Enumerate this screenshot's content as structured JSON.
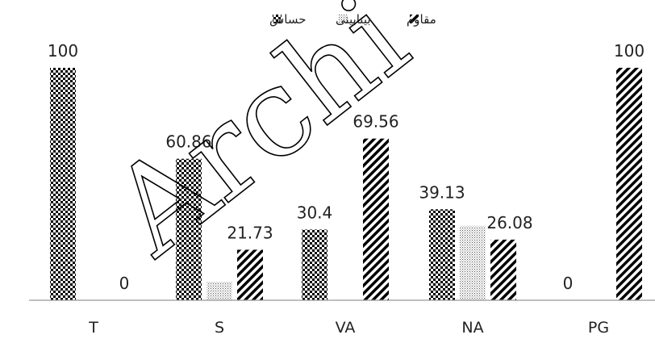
{
  "chart_data": {
    "type": "bar",
    "categories": [
      "T",
      "S",
      "VA",
      "NA",
      "PG"
    ],
    "series": [
      {
        "name": "حساس",
        "pattern": "checker",
        "values": [
          100,
          60.86,
          30.4,
          39.13,
          0
        ]
      },
      {
        "name": "بینابینی",
        "pattern": "dots",
        "values": [
          null,
          8.0,
          null,
          32.0,
          null
        ]
      },
      {
        "name": "مقاوم",
        "pattern": "diagonal",
        "values": [
          0,
          21.73,
          69.56,
          26.08,
          100
        ]
      }
    ],
    "data_labels": [
      {
        "category": "T",
        "series": "حساس",
        "text": "100"
      },
      {
        "category": "T",
        "series": "مقاوم",
        "text": "0"
      },
      {
        "category": "S",
        "series": "حساس",
        "text": "60.86"
      },
      {
        "category": "S",
        "series": "مقاوم",
        "text": "21.73"
      },
      {
        "category": "VA",
        "series": "حساس",
        "text": "30.4"
      },
      {
        "category": "VA",
        "series": "مقاوم",
        "text": "69.56"
      },
      {
        "category": "NA",
        "series": "حساس",
        "text": "39.13"
      },
      {
        "category": "NA",
        "series": "مقاوم",
        "text": "26.08"
      },
      {
        "category": "PG",
        "series": "حساس",
        "text": "0"
      },
      {
        "category": "PG",
        "series": "مقاوم",
        "text": "100"
      }
    ],
    "ylim": [
      0,
      100
    ],
    "grid": false,
    "legend": "top-center",
    "colors": {
      "bar_fill": "#000000",
      "axis": "#999999",
      "text": "#222222"
    }
  },
  "watermark": "Archi"
}
